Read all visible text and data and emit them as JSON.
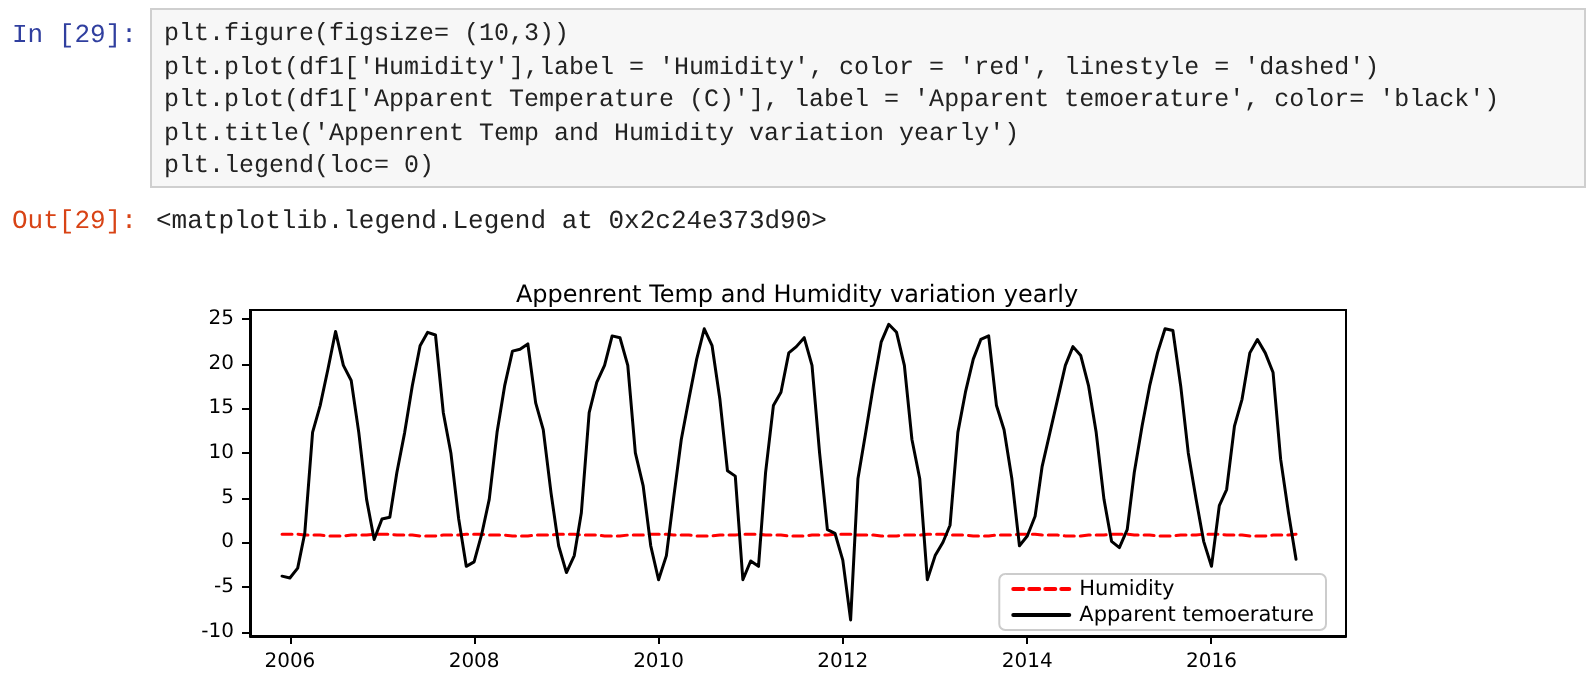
{
  "chart_data": {
    "type": "line",
    "title": "Appenrent Temp and Humidity variation yearly",
    "annotations": [
      "In [29]:",
      "plt.figure(figsize= (10,3))",
      "plt.plot(df1['Humidity'],label = 'Humidity', color = 'red', linestyle = 'dashed')",
      "plt.plot(df1['Apparent Temperature (C)'], label = 'Apparent temoerature', color= 'black')",
      "plt.title('Appenrent Temp and Humidity variation yearly')",
      "plt.legend(loc= 0)",
      "Out[29]:",
      "<matplotlib.legend.Legend at 0x2c24e373d90>"
    ],
    "x": [
      "2005-12",
      "2006-01",
      "2006-02",
      "2006-03",
      "2006-04",
      "2006-05",
      "2006-06",
      "2006-07",
      "2006-08",
      "2006-09",
      "2006-10",
      "2006-11",
      "2006-12",
      "2007-01",
      "2007-02",
      "2007-03",
      "2007-04",
      "2007-05",
      "2007-06",
      "2007-07",
      "2007-08",
      "2007-09",
      "2007-10",
      "2007-11",
      "2007-12",
      "2008-01",
      "2008-02",
      "2008-03",
      "2008-04",
      "2008-05",
      "2008-06",
      "2008-07",
      "2008-08",
      "2008-09",
      "2008-10",
      "2008-11",
      "2008-12",
      "2009-01",
      "2009-02",
      "2009-03",
      "2009-04",
      "2009-05",
      "2009-06",
      "2009-07",
      "2009-08",
      "2009-09",
      "2009-10",
      "2009-11",
      "2009-12",
      "2010-01",
      "2010-02",
      "2010-03",
      "2010-04",
      "2010-05",
      "2010-06",
      "2010-07",
      "2010-08",
      "2010-09",
      "2010-10",
      "2010-11",
      "2010-12",
      "2011-01",
      "2011-02",
      "2011-03",
      "2011-04",
      "2011-05",
      "2011-06",
      "2011-07",
      "2011-08",
      "2011-09",
      "2011-10",
      "2011-11",
      "2011-12",
      "2012-01",
      "2012-02",
      "2012-03",
      "2012-04",
      "2012-05",
      "2012-06",
      "2012-07",
      "2012-08",
      "2012-09",
      "2012-10",
      "2012-11",
      "2012-12",
      "2013-01",
      "2013-02",
      "2013-03",
      "2013-04",
      "2013-05",
      "2013-06",
      "2013-07",
      "2013-08",
      "2013-09",
      "2013-10",
      "2013-11",
      "2013-12",
      "2014-01",
      "2014-02",
      "2014-03",
      "2014-04",
      "2014-05",
      "2014-06",
      "2014-07",
      "2014-08",
      "2014-09",
      "2014-10",
      "2014-11",
      "2014-12",
      "2015-01",
      "2015-02",
      "2015-03",
      "2015-04",
      "2015-05",
      "2015-06",
      "2015-07",
      "2015-08",
      "2015-09",
      "2015-10",
      "2015-11",
      "2015-12",
      "2016-01",
      "2016-02",
      "2016-03",
      "2016-04",
      "2016-05",
      "2016-06",
      "2016-07",
      "2016-08",
      "2016-09",
      "2016-10",
      "2016-11",
      "2016-12"
    ],
    "series": [
      {
        "name": "Humidity",
        "color": "#ff0000",
        "line_style": "dashed",
        "values": [
          0.9,
          0.9,
          0.9,
          0.8,
          0.8,
          0.8,
          0.7,
          0.7,
          0.7,
          0.8,
          0.8,
          0.8,
          0.9,
          0.9,
          0.9,
          0.8,
          0.8,
          0.8,
          0.7,
          0.7,
          0.7,
          0.8,
          0.8,
          0.8,
          0.9,
          0.9,
          0.9,
          0.8,
          0.8,
          0.8,
          0.7,
          0.7,
          0.7,
          0.8,
          0.8,
          0.8,
          0.9,
          0.9,
          0.9,
          0.8,
          0.8,
          0.8,
          0.7,
          0.7,
          0.7,
          0.8,
          0.8,
          0.8,
          0.9,
          0.9,
          0.9,
          0.8,
          0.8,
          0.8,
          0.7,
          0.7,
          0.7,
          0.8,
          0.8,
          0.8,
          0.9,
          0.9,
          0.9,
          0.8,
          0.8,
          0.8,
          0.7,
          0.7,
          0.7,
          0.8,
          0.8,
          0.8,
          0.9,
          0.9,
          0.9,
          0.8,
          0.8,
          0.8,
          0.7,
          0.7,
          0.7,
          0.8,
          0.8,
          0.8,
          0.9,
          0.9,
          0.9,
          0.8,
          0.8,
          0.8,
          0.7,
          0.7,
          0.7,
          0.8,
          0.8,
          0.8,
          0.9,
          0.9,
          0.9,
          0.8,
          0.8,
          0.8,
          0.7,
          0.7,
          0.7,
          0.8,
          0.8,
          0.8,
          0.9,
          0.9,
          0.9,
          0.8,
          0.8,
          0.8,
          0.7,
          0.7,
          0.7,
          0.8,
          0.8,
          0.8,
          0.9,
          0.9,
          0.9,
          0.8,
          0.8,
          0.8,
          0.7,
          0.7,
          0.7,
          0.8,
          0.8,
          0.8,
          0.9
        ]
      },
      {
        "name": "Apparent temoerature",
        "color": "#000000",
        "line_style": "solid",
        "values": [
          -3.8,
          -4.0,
          -2.9,
          1.0,
          12.3,
          15.3,
          19.4,
          23.6,
          19.8,
          18.1,
          12.3,
          4.8,
          0.3,
          2.6,
          2.8,
          7.8,
          12.3,
          17.5,
          22.0,
          23.5,
          23.2,
          14.5,
          10.0,
          2.6,
          -2.7,
          -2.2,
          1.0,
          4.8,
          12.3,
          17.5,
          21.4,
          21.6,
          22.2,
          15.6,
          12.6,
          5.5,
          -0.4,
          -3.4,
          -1.5,
          3.3,
          14.5,
          17.9,
          19.8,
          23.1,
          22.9,
          19.8,
          10.0,
          6.3,
          -0.4,
          -4.2,
          -1.5,
          4.8,
          11.5,
          16.0,
          20.5,
          23.9,
          22.0,
          16.0,
          8.0,
          7.4,
          -4.2,
          -2.1,
          -2.7,
          7.8,
          15.3,
          16.8,
          21.2,
          21.9,
          22.9,
          19.8,
          10.0,
          1.4,
          1.0,
          -2.0,
          -8.7,
          7.1,
          12.3,
          17.5,
          22.4,
          24.4,
          23.5,
          19.8,
          11.5,
          7.1,
          -4.2,
          -1.5,
          0.0,
          1.9,
          12.3,
          16.8,
          20.5,
          22.7,
          23.1,
          15.3,
          12.6,
          7.1,
          -0.4,
          0.7,
          2.9,
          8.5,
          12.3,
          16.0,
          19.8,
          21.9,
          20.9,
          17.5,
          12.3,
          4.8,
          0.1,
          -0.6,
          1.4,
          7.8,
          13.0,
          17.5,
          21.2,
          23.9,
          23.7,
          17.5,
          10.0,
          4.8,
          0.1,
          -2.7,
          4.1,
          5.9,
          13.0,
          16.0,
          21.2,
          22.7,
          21.2,
          19.0,
          9.3,
          3.3,
          -1.9
        ]
      }
    ],
    "xlim": [
      "2005-07-27",
      "2017-06-17"
    ],
    "xticks": [
      "2006",
      "2008",
      "2010",
      "2012",
      "2014",
      "2016"
    ],
    "ylim": [
      -10.5,
      26
    ],
    "yticks": [
      -10,
      -5,
      0,
      5,
      10,
      15,
      20,
      25
    ],
    "legend": "bottom right",
    "marker": "none",
    "grid": false
  }
}
